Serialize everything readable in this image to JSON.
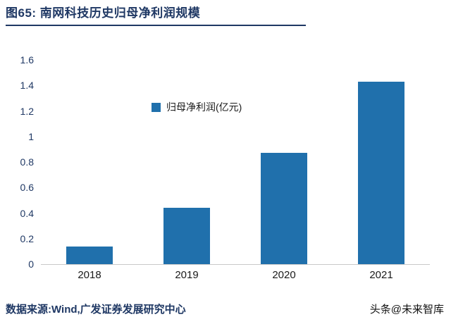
{
  "header": {
    "title": "图65:  南网科技历史归母净利润规模",
    "accent_color": "#1F3864"
  },
  "chart_data": {
    "type": "bar",
    "title": "南网科技历史归母净利润规模",
    "categories": [
      "2018",
      "2019",
      "2020",
      "2021"
    ],
    "values": [
      0.14,
      0.44,
      0.87,
      1.43
    ],
    "legend": "归母净利润(亿元)",
    "legend_position": "upper-center",
    "ylim": [
      0,
      1.6
    ],
    "ytick_step": 0.2,
    "yticks": [
      "0",
      "0.2",
      "0.4",
      "0.6",
      "0.8",
      "1",
      "1.2",
      "1.4",
      "1.6"
    ],
    "bar_color": "#2070AC",
    "grid": false,
    "xlabel": "",
    "ylabel": ""
  },
  "footer": {
    "source": "数据来源:Wind,广发证券发展研究中心",
    "watermark": "头条@未来智库"
  }
}
